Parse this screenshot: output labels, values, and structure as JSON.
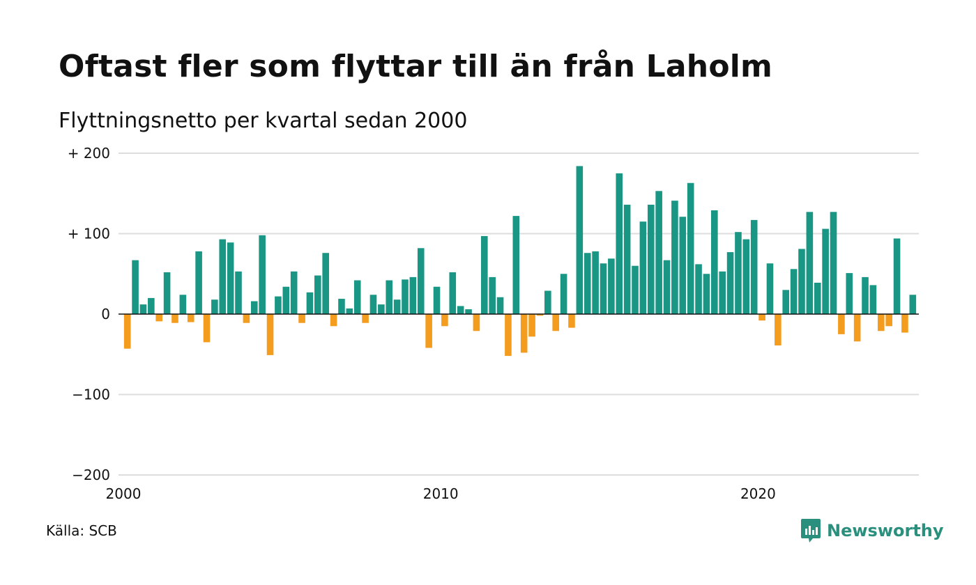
{
  "title": "Oftast fler som flyttar till än från Laholm",
  "subtitle": "Flyttningsnetto per kvartal sedan 2000",
  "source": "Källa: SCB",
  "brand": {
    "name": "Newsworthy",
    "icon": "newsworthy-logo-icon"
  },
  "colors": {
    "positive": "#1a9685",
    "negative": "#f39c1e",
    "grid": "#dddddd",
    "brand": "#2b8f7e"
  },
  "chart_data": {
    "type": "bar",
    "title": "Oftast fler som flyttar till än från Laholm",
    "subtitle": "Flyttningsnetto per kvartal sedan 2000",
    "xlabel": "",
    "ylabel": "",
    "ylim": [
      -200,
      200
    ],
    "y_ticks": [
      {
        "value": 200,
        "label": "+ 200"
      },
      {
        "value": 100,
        "label": "+ 100"
      },
      {
        "value": 0,
        "label": "0"
      },
      {
        "value": -100,
        "label": "−100"
      },
      {
        "value": -200,
        "label": "−200"
      }
    ],
    "x_ticks": [
      "2000",
      "2010",
      "2020"
    ],
    "grid": true,
    "start_year": 2000,
    "quarters_per_year": 4,
    "values": [
      -43,
      67,
      12,
      20,
      -9,
      52,
      -11,
      24,
      -10,
      78,
      -35,
      18,
      93,
      89,
      53,
      -11,
      16,
      98,
      -51,
      22,
      34,
      53,
      -11,
      27,
      48,
      76,
      -15,
      19,
      7,
      42,
      -11,
      24,
      12,
      42,
      18,
      43,
      46,
      82,
      -42,
      34,
      -15,
      52,
      10,
      6,
      -21,
      97,
      46,
      21,
      -52,
      122,
      -48,
      -28,
      -2,
      29,
      -21,
      50,
      -17,
      184,
      76,
      78,
      63,
      69,
      175,
      136,
      60,
      115,
      136,
      153,
      67,
      141,
      121,
      163,
      62,
      50,
      129,
      53,
      77,
      102,
      93,
      117,
      -8,
      63,
      -39,
      30,
      56,
      81,
      127,
      39,
      106,
      127,
      -25,
      51,
      -34,
      46,
      36,
      -21,
      -15,
      94,
      -23,
      24
    ]
  }
}
